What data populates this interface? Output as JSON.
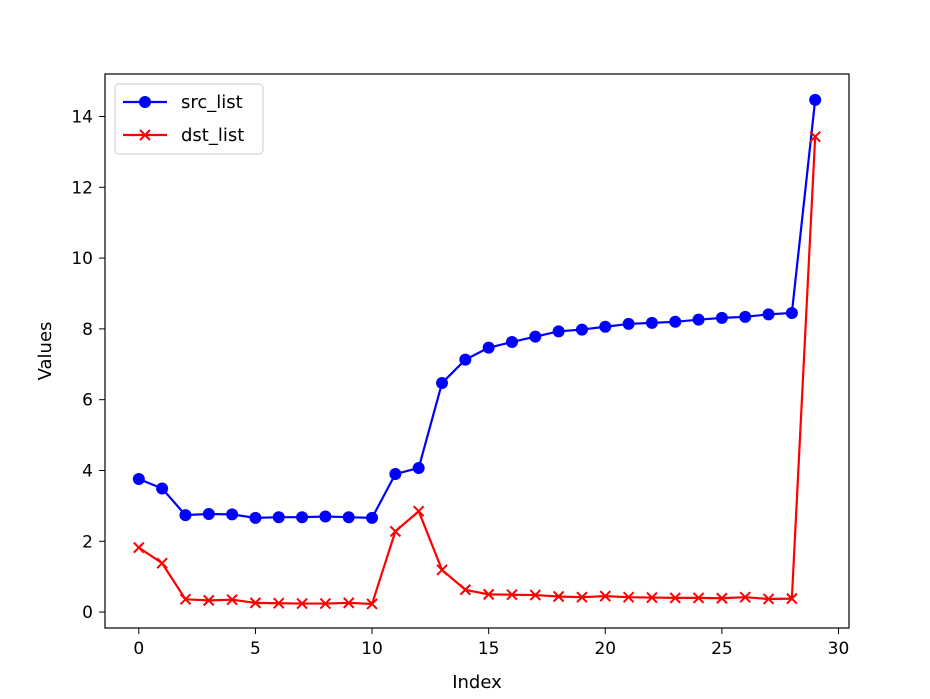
{
  "chart_data": {
    "type": "line",
    "title": "",
    "xlabel": "Index",
    "ylabel": "Values",
    "xlim": [
      -1.45,
      30.45
    ],
    "ylim": [
      -0.45,
      15.2
    ],
    "xticks": [
      0,
      5,
      10,
      15,
      20,
      25,
      30
    ],
    "yticks": [
      0,
      2,
      4,
      6,
      8,
      10,
      12,
      14
    ],
    "grid": false,
    "legend_position": "top-left",
    "x": [
      0,
      1,
      2,
      3,
      4,
      5,
      6,
      7,
      8,
      9,
      10,
      11,
      12,
      13,
      14,
      15,
      16,
      17,
      18,
      19,
      20,
      21,
      22,
      23,
      24,
      25,
      26,
      27,
      28,
      29
    ],
    "series": [
      {
        "name": "src_list",
        "color": "#0000ff",
        "marker": "circle",
        "values": [
          3.76,
          3.49,
          2.74,
          2.77,
          2.76,
          2.66,
          2.68,
          2.68,
          2.7,
          2.68,
          2.66,
          3.9,
          4.07,
          6.47,
          7.13,
          7.47,
          7.63,
          7.78,
          7.93,
          7.98,
          8.06,
          8.14,
          8.17,
          8.2,
          8.26,
          8.31,
          8.34,
          8.41,
          8.45,
          14.47
        ]
      },
      {
        "name": "dst_list",
        "color": "#ff0000",
        "marker": "x",
        "values": [
          1.82,
          1.38,
          0.36,
          0.33,
          0.35,
          0.26,
          0.25,
          0.24,
          0.24,
          0.26,
          0.23,
          2.28,
          2.85,
          1.19,
          0.63,
          0.5,
          0.49,
          0.48,
          0.44,
          0.42,
          0.45,
          0.42,
          0.41,
          0.4,
          0.4,
          0.39,
          0.42,
          0.37,
          0.38,
          13.43
        ]
      }
    ]
  }
}
